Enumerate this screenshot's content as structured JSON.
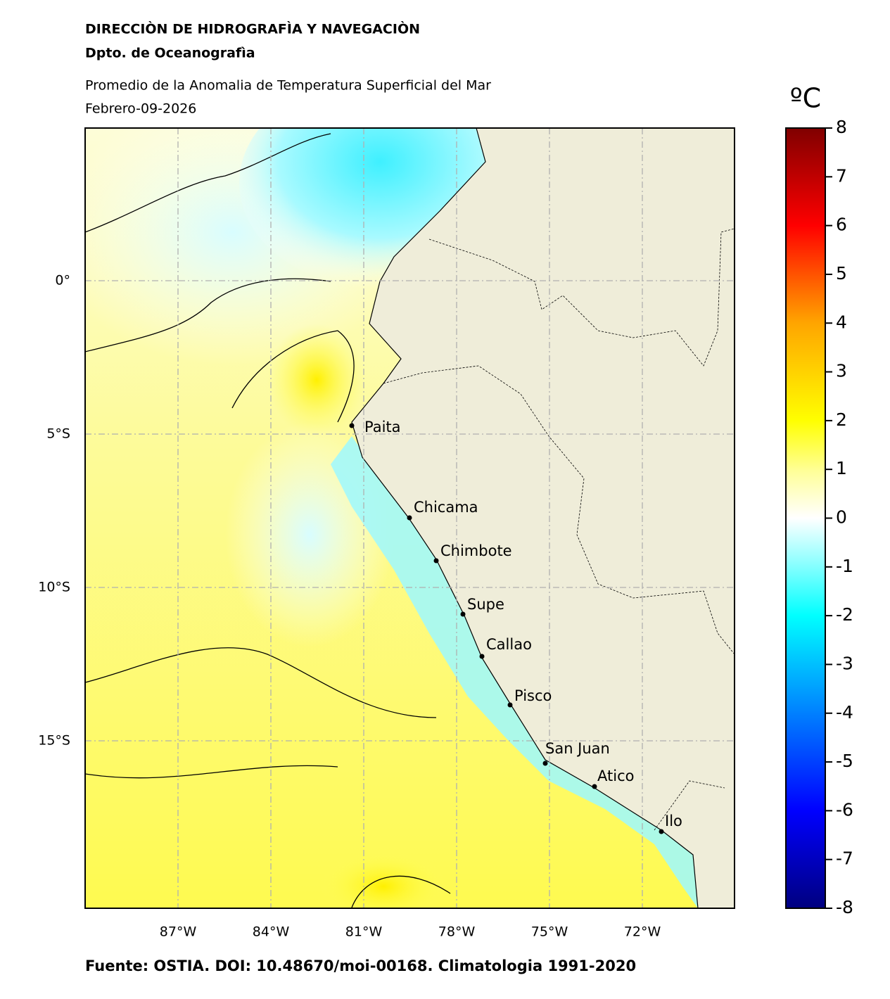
{
  "header": {
    "title": "DIRECCIÒN DE HIDROGRAFÌA Y NAVEGACIÒN",
    "subtitle": "Dpto. de Oceanografìa"
  },
  "map": {
    "title": "Promedio de la Anomalia de Temperatura Superficial del Mar",
    "date": "Febrero-09-2026",
    "lon_ticks": [
      {
        "value": -87,
        "label": "87°W"
      },
      {
        "value": -84,
        "label": "84°W"
      },
      {
        "value": -81,
        "label": "81°W"
      },
      {
        "value": -78,
        "label": "78°W"
      },
      {
        "value": -75,
        "label": "75°W"
      },
      {
        "value": -72,
        "label": "72°W"
      }
    ],
    "lat_ticks": [
      {
        "value": 0,
        "label": "0°"
      },
      {
        "value": -5,
        "label": "5°S"
      },
      {
        "value": -10,
        "label": "10°S"
      },
      {
        "value": -15,
        "label": "15°S"
      }
    ],
    "cities": [
      "Paita",
      "Chicama",
      "Chimbote",
      "Supe",
      "Callao",
      "Pisco",
      "San Juan",
      "Atico",
      "Ilo"
    ]
  },
  "colorbar": {
    "label": "ºC",
    "range": [
      -8,
      8
    ],
    "ticks": [
      8,
      7,
      6,
      5,
      4,
      3,
      2,
      1,
      0,
      -1,
      -2,
      -3,
      -4,
      -5,
      -6,
      -7,
      -8
    ]
  },
  "footer": "Fuente: OSTIA. DOI: 10.48670/moi-00168. Climatologia 1991-2020"
}
